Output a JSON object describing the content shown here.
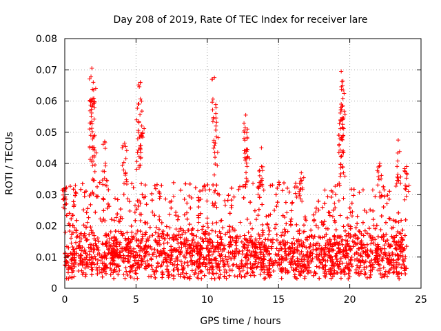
{
  "chart_data": {
    "type": "scatter",
    "title": "Day 208 of 2019, Rate Of TEC Index for receiver lare",
    "xlabel": "GPS time / hours",
    "ylabel": "ROTI / TECUs",
    "xlim": [
      0,
      25
    ],
    "ylim": [
      0,
      0.08
    ],
    "x_ticks": [
      0,
      5,
      10,
      15,
      20,
      25
    ],
    "y_ticks": [
      0,
      0.01,
      0.02,
      0.03,
      0.04,
      0.05,
      0.06,
      0.07,
      0.08
    ],
    "x_tick_labels": [
      "0",
      "5",
      "10",
      "15",
      "20",
      "25"
    ],
    "y_tick_labels": [
      "0",
      "0.01",
      "0.02",
      "0.03",
      "0.04",
      "0.05",
      "0.06",
      "0.07",
      "0.08"
    ],
    "grid": true,
    "marker": "+",
    "marker_color": "#ff0000",
    "series": [
      {
        "name": "ROTI",
        "description_stats": {
          "x_range": [
            0,
            24
          ],
          "typical_band": [
            0.005,
            0.02
          ],
          "baseline_median": 0.011
        },
        "peaks": [
          {
            "x": 1.9,
            "y": 0.0705
          },
          {
            "x": 2.0,
            "y": 0.066
          },
          {
            "x": 1.9,
            "y": 0.06
          },
          {
            "x": 2.1,
            "y": 0.049
          },
          {
            "x": 2.8,
            "y": 0.047
          },
          {
            "x": 4.2,
            "y": 0.0465
          },
          {
            "x": 5.3,
            "y": 0.066
          },
          {
            "x": 5.2,
            "y": 0.059
          },
          {
            "x": 5.4,
            "y": 0.052
          },
          {
            "x": 10.5,
            "y": 0.0675
          },
          {
            "x": 10.6,
            "y": 0.056
          },
          {
            "x": 12.7,
            "y": 0.0555
          },
          {
            "x": 12.8,
            "y": 0.048
          },
          {
            "x": 13.8,
            "y": 0.045
          },
          {
            "x": 19.4,
            "y": 0.0695
          },
          {
            "x": 19.5,
            "y": 0.065
          },
          {
            "x": 19.4,
            "y": 0.059
          },
          {
            "x": 19.5,
            "y": 0.054
          },
          {
            "x": 23.4,
            "y": 0.0475
          },
          {
            "x": 22.1,
            "y": 0.04
          },
          {
            "x": 0.0,
            "y": 0.032
          },
          {
            "x": 16.6,
            "y": 0.037
          },
          {
            "x": 24.0,
            "y": 0.039
          }
        ]
      }
    ]
  }
}
